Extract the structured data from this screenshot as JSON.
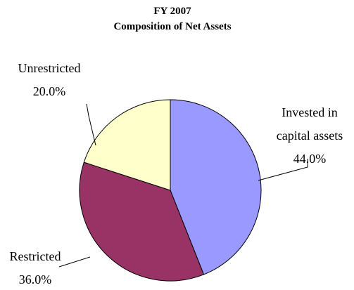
{
  "chart_data": {
    "type": "pie",
    "title": "FY 2007",
    "subtitle": "Composition of Net Assets",
    "categories": [
      "Invested in capital assets",
      "Restricted",
      "Unrestricted"
    ],
    "values": [
      44.0,
      36.0,
      20.0
    ],
    "value_labels": [
      "44.0%",
      "36.0%",
      "20.0%"
    ],
    "colors": [
      "#9999ff",
      "#993366",
      "#ffffcc"
    ]
  }
}
